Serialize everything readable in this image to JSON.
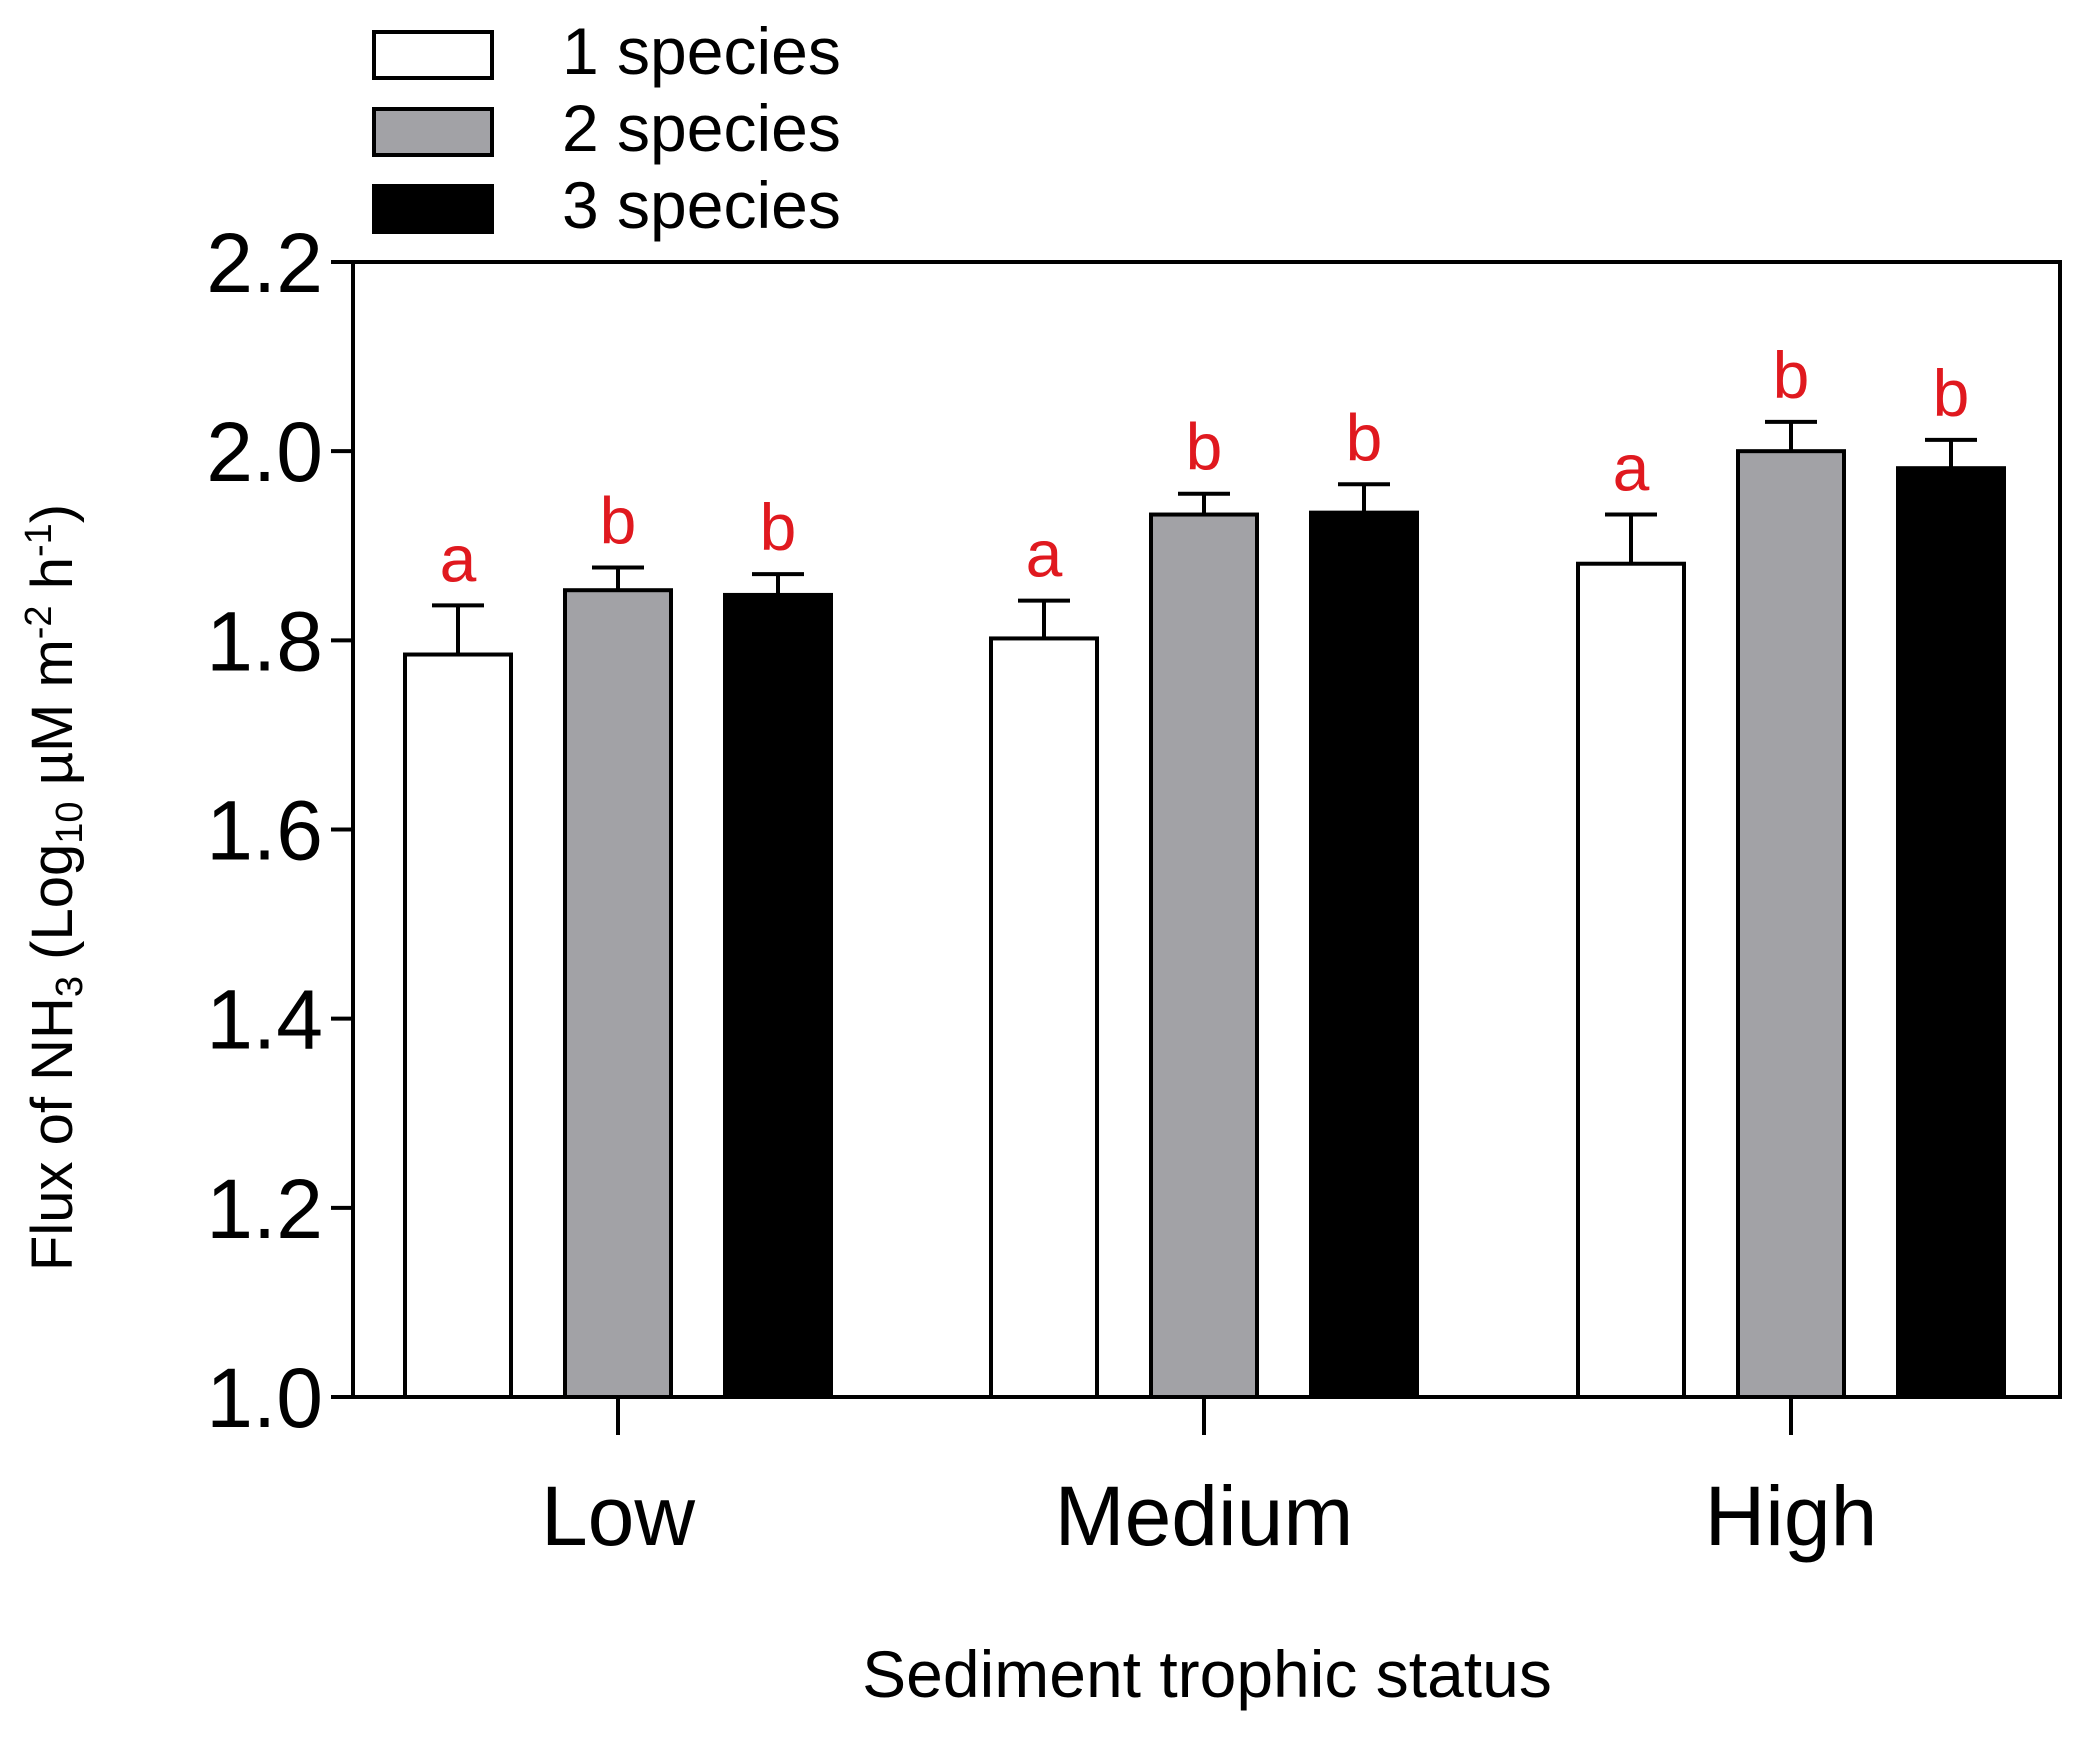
{
  "chart_data": {
    "type": "bar",
    "xlabel": "Sediment trophic status",
    "ylabel": {
      "parts": [
        {
          "t": "Flux of NH",
          "s": "normal"
        },
        {
          "t": "3",
          "s": "sub"
        },
        {
          "t": " (Log",
          "s": "normal"
        },
        {
          "t": "10",
          "s": "sub"
        },
        {
          "t": " µM m",
          "s": "normal"
        },
        {
          "t": "-2",
          "s": "sup"
        },
        {
          "t": " h",
          "s": "normal"
        },
        {
          "t": "-1",
          "s": "sup"
        },
        {
          "t": ")",
          "s": "normal"
        }
      ]
    },
    "ylim": [
      1.0,
      2.2
    ],
    "yticks": [
      1.0,
      1.2,
      1.4,
      1.6,
      1.8,
      2.0,
      2.2
    ],
    "ytick_labels": [
      "1.0",
      "1.2",
      "1.4",
      "1.6",
      "1.8",
      "2.0",
      "2.2"
    ],
    "categories": [
      "Low",
      "Medium",
      "High"
    ],
    "series": [
      {
        "name": "1 species",
        "color": "#ffffff",
        "values": [
          1.785,
          1.802,
          1.881
        ],
        "errors": [
          0.052,
          0.04,
          0.052
        ],
        "letters": [
          "a",
          "a",
          "a"
        ]
      },
      {
        "name": "2 species",
        "color": "#a2a2a6",
        "values": [
          1.853,
          1.933,
          2.0
        ],
        "errors": [
          0.024,
          0.022,
          0.031
        ],
        "letters": [
          "b",
          "b",
          "b"
        ]
      },
      {
        "name": "3 species",
        "color": "#000000",
        "values": [
          1.848,
          1.935,
          1.982
        ],
        "errors": [
          0.022,
          0.03,
          0.03
        ],
        "letters": [
          "b",
          "b",
          "b"
        ]
      }
    ],
    "letter_color": "#e0191f",
    "grid": false,
    "legend_position": "top-left"
  }
}
